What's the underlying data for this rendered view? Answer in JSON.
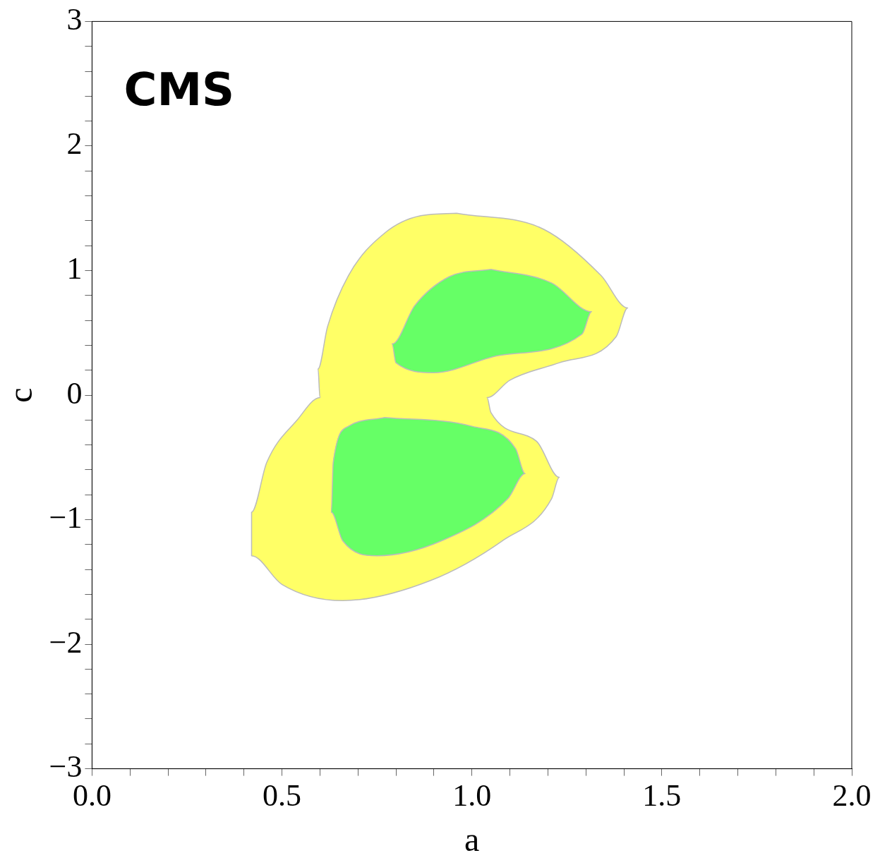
{
  "chart_data": {
    "type": "area",
    "xlabel": "a",
    "ylabel": "c",
    "annotations": [
      "CMS"
    ],
    "xlim": [
      0,
      2
    ],
    "ylim": [
      -3,
      3
    ],
    "xticks": [
      {
        "value": 0,
        "label": "0.0"
      },
      {
        "value": 0.1,
        "label": null
      },
      {
        "value": 0.2,
        "label": null
      },
      {
        "value": 0.3,
        "label": null
      },
      {
        "value": 0.4,
        "label": null
      },
      {
        "value": 0.5,
        "label": "0.5"
      },
      {
        "value": 0.6,
        "label": null
      },
      {
        "value": 0.7,
        "label": null
      },
      {
        "value": 0.8,
        "label": null
      },
      {
        "value": 0.9,
        "label": null
      },
      {
        "value": 1,
        "label": "1.0"
      },
      {
        "value": 1.1,
        "label": null
      },
      {
        "value": 1.2,
        "label": null
      },
      {
        "value": 1.3,
        "label": null
      },
      {
        "value": 1.4,
        "label": null
      },
      {
        "value": 1.5,
        "label": "1.5"
      },
      {
        "value": 1.6,
        "label": null
      },
      {
        "value": 1.7,
        "label": null
      },
      {
        "value": 1.8,
        "label": null
      },
      {
        "value": 1.9,
        "label": null
      },
      {
        "value": 2,
        "label": "2.0"
      }
    ],
    "yticks": [
      {
        "value": -3,
        "label": "−3"
      },
      {
        "value": -2.8,
        "label": null
      },
      {
        "value": -2.6,
        "label": null
      },
      {
        "value": -2.4,
        "label": null
      },
      {
        "value": -2.2,
        "label": null
      },
      {
        "value": -2,
        "label": "−2"
      },
      {
        "value": -1.8,
        "label": null
      },
      {
        "value": -1.6,
        "label": null
      },
      {
        "value": -1.4,
        "label": null
      },
      {
        "value": -1.2,
        "label": null
      },
      {
        "value": -1,
        "label": "−1"
      },
      {
        "value": -0.8,
        "label": null
      },
      {
        "value": -0.6,
        "label": null
      },
      {
        "value": -0.4,
        "label": null
      },
      {
        "value": -0.2,
        "label": null
      },
      {
        "value": 0,
        "label": "0"
      },
      {
        "value": 0.2,
        "label": null
      },
      {
        "value": 0.4,
        "label": null
      },
      {
        "value": 0.6,
        "label": null
      },
      {
        "value": 0.8,
        "label": null
      },
      {
        "value": 1,
        "label": "1"
      },
      {
        "value": 1.2,
        "label": null
      },
      {
        "value": 1.4,
        "label": null
      },
      {
        "value": 1.6,
        "label": null
      },
      {
        "value": 1.8,
        "label": null
      },
      {
        "value": 2,
        "label": "2"
      },
      {
        "value": 2.2,
        "label": null
      },
      {
        "value": 2.4,
        "label": null
      },
      {
        "value": 2.6,
        "label": null
      },
      {
        "value": 2.8,
        "label": null
      },
      {
        "value": 3,
        "label": "3"
      }
    ],
    "grid": false,
    "legend": false,
    "series": [
      {
        "color": "#ffff66",
        "x": [
          0.96,
          1.19,
          1.34,
          1.41,
          1.38,
          1.23,
          1.1,
          1.04,
          1.05,
          1.17,
          1.23,
          1.21,
          1.08,
          0.89,
          0.66,
          0.5,
          0.42,
          0.42,
          0.46,
          0.54,
          0.6,
          0.595,
          0.62,
          0.675,
          0.77,
          0.865,
          0.96
        ],
        "values": [
          1.46,
          1.33,
          0.96,
          0.7,
          0.47,
          0.26,
          0.12,
          -0.02,
          -0.14,
          -0.37,
          -0.66,
          -0.83,
          -1.17,
          -1.49,
          -1.65,
          -1.52,
          -1.29,
          -0.94,
          -0.54,
          -0.2,
          -0.02,
          0.21,
          0.55,
          0.96,
          1.3,
          1.44,
          1.46
        ]
      },
      {
        "color": "#66ff66",
        "x": [
          1.05,
          1.21,
          1.315,
          1.29,
          1.075,
          0.9,
          0.8,
          0.79,
          0.85,
          0.94,
          1.05
        ],
        "values": [
          1.01,
          0.9,
          0.67,
          0.49,
          0.32,
          0.18,
          0.26,
          0.41,
          0.72,
          0.95,
          1.01
        ]
      },
      {
        "color": "#66ff66",
        "x": [
          0.77,
          1.0,
          1.115,
          1.14,
          1.095,
          0.92,
          0.75,
          0.66,
          0.63,
          0.635,
          0.675,
          0.77
        ],
        "values": [
          -0.18,
          -0.25,
          -0.43,
          -0.63,
          -0.83,
          -1.17,
          -1.29,
          -1.17,
          -0.94,
          -0.54,
          -0.25,
          -0.18
        ]
      }
    ]
  }
}
